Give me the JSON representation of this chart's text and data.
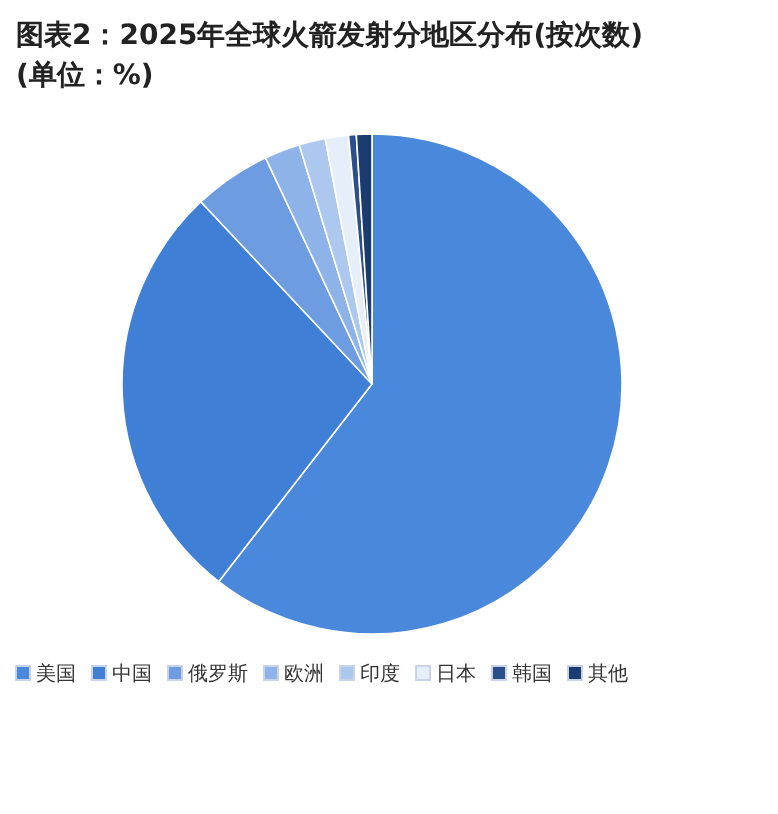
{
  "chart_data": {
    "type": "pie",
    "title": "图表2：2025年全球火箭发射分地区分布(按次数)",
    "subtitle": "(单位：%)",
    "categories": [
      "美国",
      "中国",
      "俄罗斯",
      "欧洲",
      "印度",
      "日本",
      "韩国",
      "其他"
    ],
    "values": [
      60.5,
      27.5,
      5,
      2.3,
      1.7,
      1.5,
      0.5,
      1.0
    ],
    "colors": [
      "#4a88dc",
      "#3f7fd5",
      "#6d9de0",
      "#8db3e8",
      "#adc8ee",
      "#e6eef9",
      "#2a4f8c",
      "#1c3b70"
    ],
    "legend": "bottom"
  }
}
